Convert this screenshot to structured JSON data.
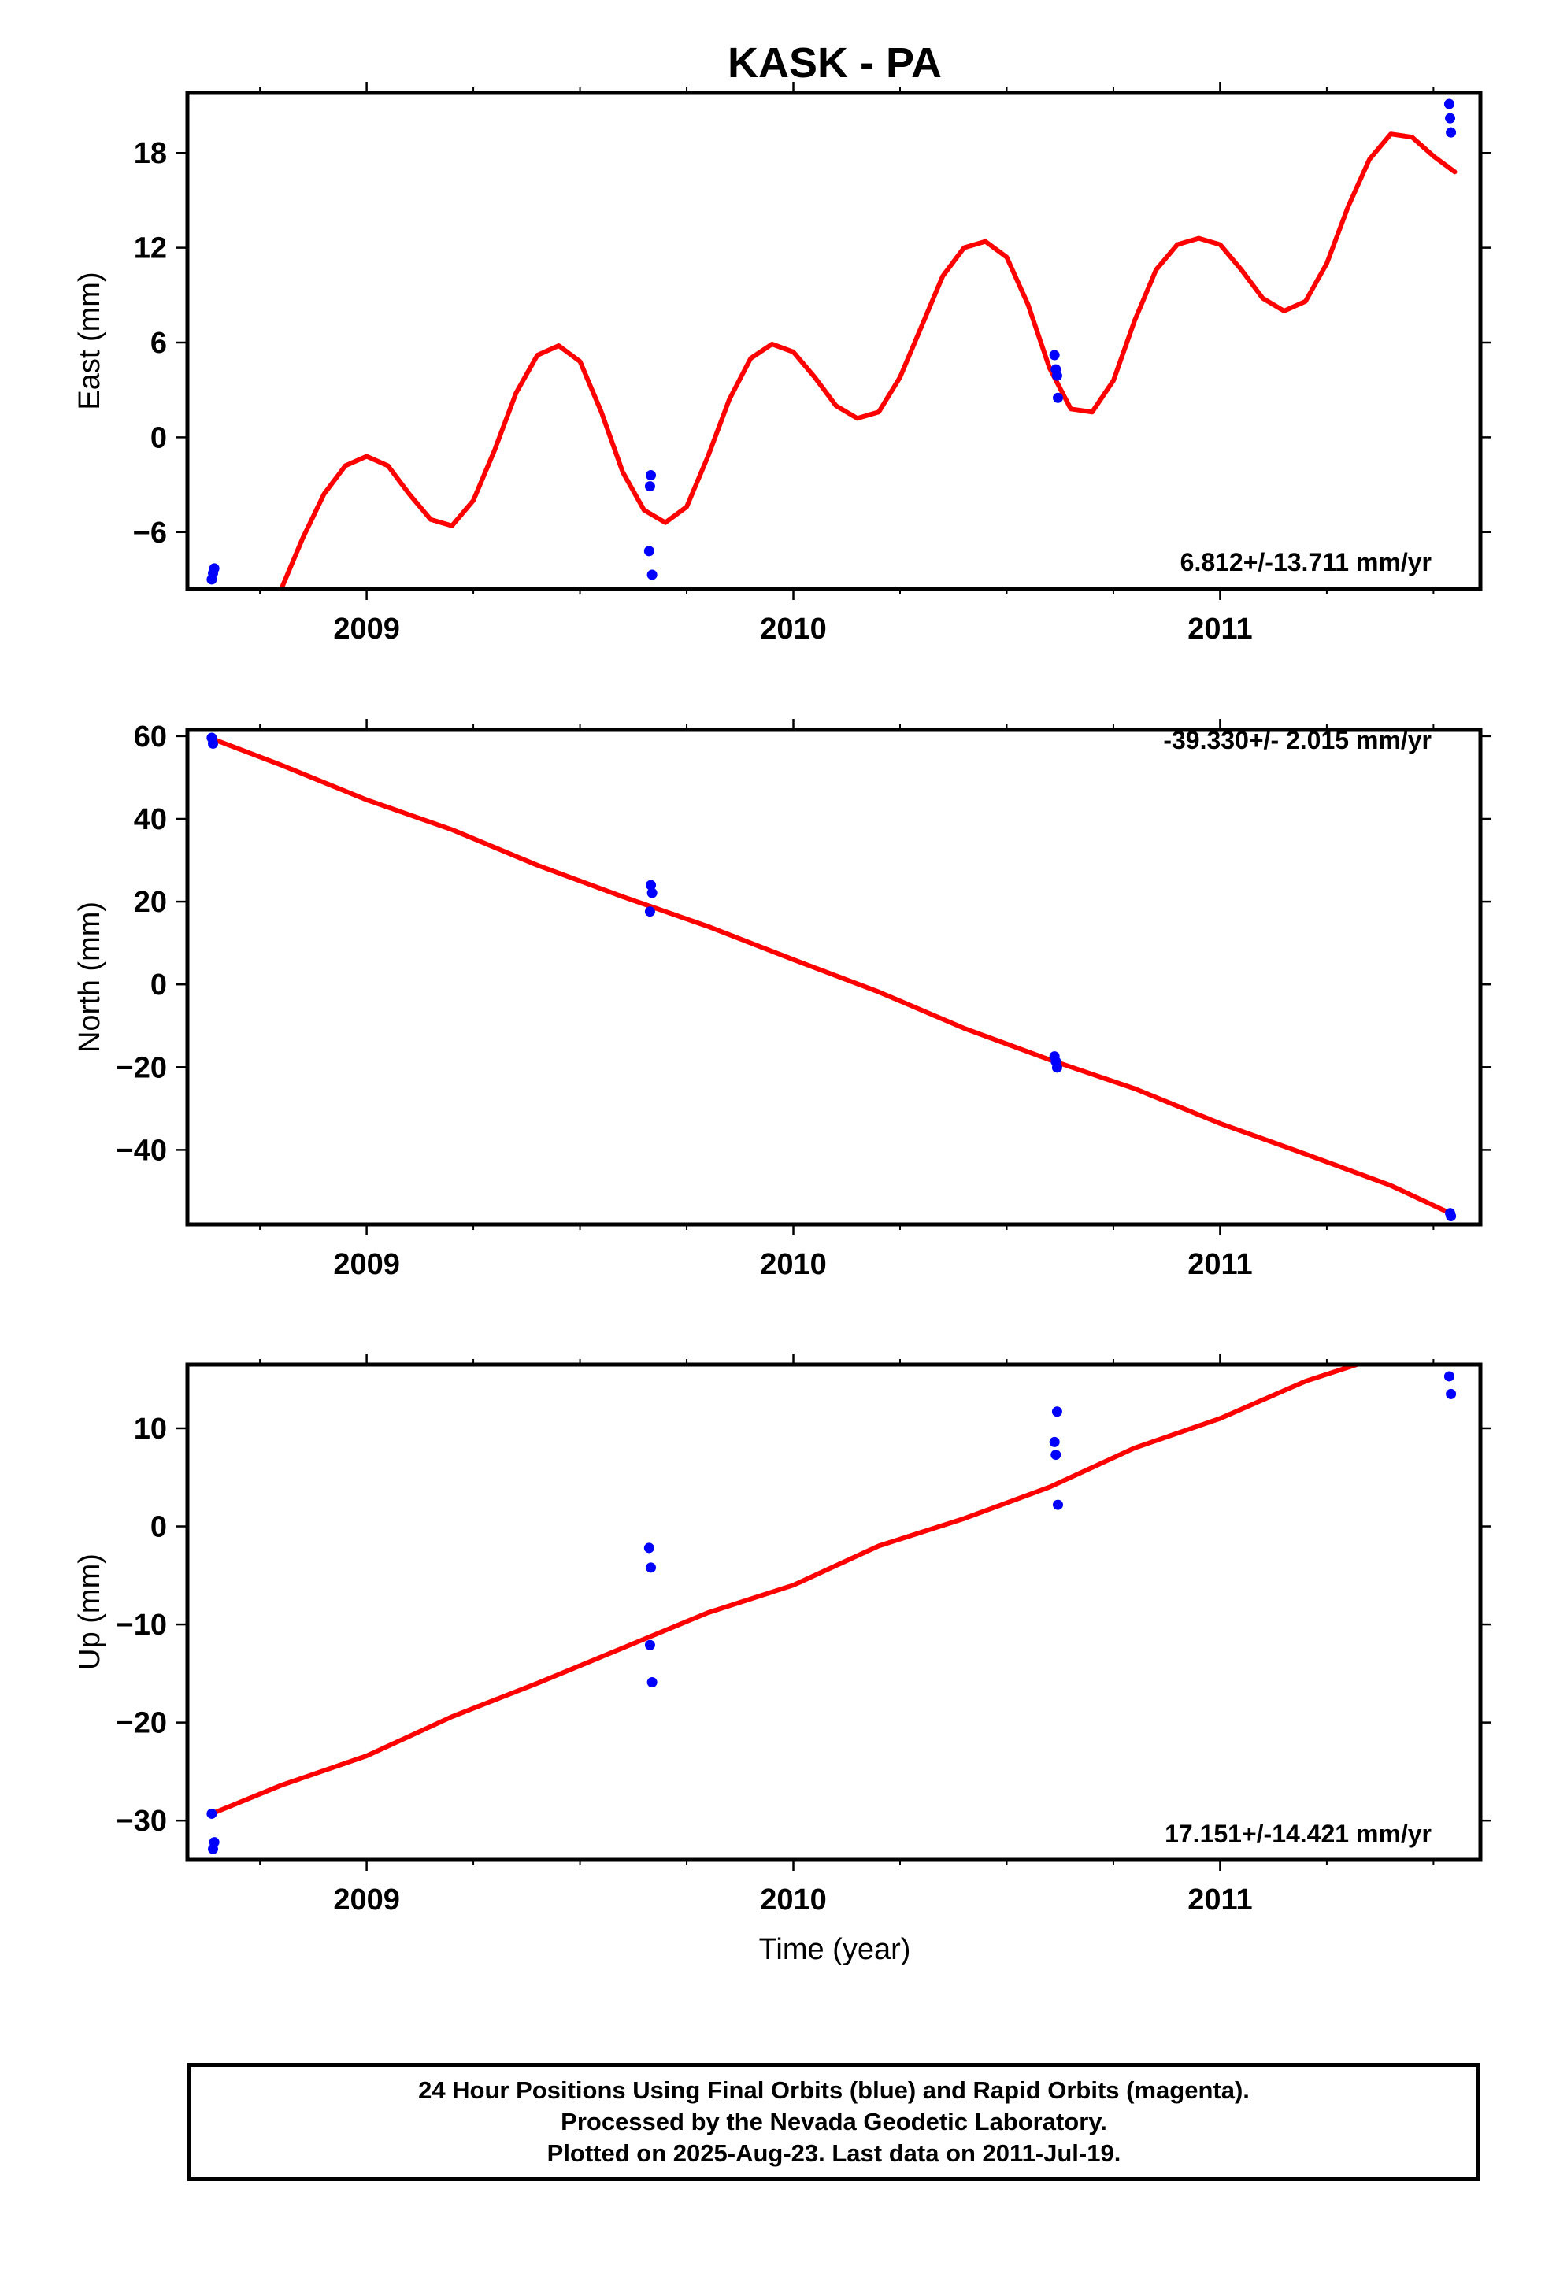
{
  "title": "KASK - PA",
  "xlabel": "Time (year)",
  "colors": {
    "fit": "#ff0000",
    "final_points": "#0000ff",
    "frame": "#000000"
  },
  "chart_data": [
    {
      "type": "scatter",
      "ylabel": "East (mm)",
      "rate_label": "6.812+/-13.711 mm/yr",
      "xlim": [
        2008.58,
        2011.61
      ],
      "ylim": [
        -9.6,
        21.8
      ],
      "xticks": [
        2009,
        2010,
        2011
      ],
      "yticks": [
        -6,
        0,
        6,
        12,
        18
      ],
      "grid": false,
      "series": [
        {
          "role": "final",
          "x": [
            2008.637,
            2008.64,
            2008.643,
            2009.662,
            2009.666,
            2009.664,
            2009.669,
            2010.612,
            2010.615,
            2010.618,
            2010.62,
            2011.537,
            2011.539,
            2011.541
          ],
          "y": [
            -9.0,
            -8.6,
            -8.3,
            -7.2,
            -2.4,
            -3.1,
            -8.7,
            5.2,
            4.3,
            3.9,
            2.5,
            21.1,
            20.2,
            19.3
          ]
        },
        {
          "role": "fit",
          "x": [
            2008.8,
            2008.85,
            2008.9,
            2008.95,
            2009.0,
            2009.05,
            2009.1,
            2009.15,
            2009.2,
            2009.25,
            2009.3,
            2009.35,
            2009.4,
            2009.45,
            2009.5,
            2009.55,
            2009.6,
            2009.65,
            2009.7,
            2009.75,
            2009.8,
            2009.85,
            2009.9,
            2009.95,
            2010.0,
            2010.05,
            2010.1,
            2010.15,
            2010.2,
            2010.25,
            2010.3,
            2010.35,
            2010.4,
            2010.45,
            2010.5,
            2010.55,
            2010.6,
            2010.65,
            2010.7,
            2010.75,
            2010.8,
            2010.85,
            2010.9,
            2010.95,
            2011.0,
            2011.05,
            2011.1,
            2011.15,
            2011.2,
            2011.25,
            2011.3,
            2011.35,
            2011.4,
            2011.45,
            2011.5,
            2011.55
          ],
          "y": [
            -9.6,
            -6.4,
            -3.6,
            -1.8,
            -1.2,
            -1.8,
            -3.6,
            -5.2,
            -5.6,
            -4.0,
            -0.8,
            2.8,
            5.2,
            5.8,
            4.8,
            1.6,
            -2.2,
            -4.6,
            -5.4,
            -4.4,
            -1.2,
            2.4,
            5.0,
            5.9,
            5.4,
            3.8,
            2.0,
            1.2,
            1.6,
            3.8,
            7.0,
            10.2,
            12.0,
            12.4,
            11.4,
            8.4,
            4.4,
            1.8,
            1.6,
            3.6,
            7.4,
            10.6,
            12.2,
            12.6,
            12.2,
            10.6,
            8.8,
            8.0,
            8.6,
            11.0,
            14.6,
            17.6,
            19.2,
            19.0,
            17.8,
            16.8
          ]
        }
      ]
    },
    {
      "type": "scatter",
      "ylabel": "North (mm)",
      "rate_label": "-39.330+/- 2.015 mm/yr",
      "xlim": [
        2008.58,
        2011.61
      ],
      "ylim": [
        -58.0,
        61.5
      ],
      "xticks": [
        2009,
        2010,
        2011
      ],
      "yticks": [
        -40,
        -20,
        0,
        20,
        40,
        60
      ],
      "grid": false,
      "series": [
        {
          "role": "final",
          "x": [
            2008.637,
            2008.64,
            2009.666,
            2009.669,
            2009.664,
            2010.612,
            2010.615,
            2010.618,
            2011.539,
            2011.541
          ],
          "y": [
            59.6,
            58.2,
            24.0,
            22.1,
            17.6,
            -17.4,
            -18.6,
            -20.1,
            -55.3,
            -56.0
          ]
        },
        {
          "role": "fit",
          "x": [
            2008.637,
            2008.8,
            2009.0,
            2009.2,
            2009.4,
            2009.6,
            2009.8,
            2010.0,
            2010.2,
            2010.4,
            2010.6,
            2010.8,
            2011.0,
            2011.2,
            2011.4,
            2011.541
          ],
          "y": [
            59.4,
            53.0,
            44.6,
            37.4,
            28.8,
            21.2,
            14.0,
            6.0,
            -1.8,
            -10.6,
            -18.2,
            -25.2,
            -33.6,
            -41.0,
            -48.6,
            -55.4
          ]
        }
      ]
    },
    {
      "type": "scatter",
      "ylabel": "Up (mm)",
      "rate_label": "17.151+/-14.421 mm/yr",
      "xlim": [
        2008.58,
        2011.61
      ],
      "ylim": [
        -34.0,
        16.5
      ],
      "xticks": [
        2009,
        2010,
        2011
      ],
      "yticks": [
        -30,
        -20,
        -10,
        0,
        10
      ],
      "grid": false,
      "series": [
        {
          "role": "final",
          "x": [
            2008.637,
            2008.64,
            2008.643,
            2009.662,
            2009.666,
            2009.664,
            2009.669,
            2010.612,
            2010.615,
            2010.618,
            2010.62,
            2011.537,
            2011.541
          ],
          "y": [
            -29.3,
            -32.9,
            -32.2,
            -2.2,
            -4.2,
            -12.1,
            -15.9,
            8.6,
            7.3,
            11.7,
            2.2,
            15.3,
            13.5
          ]
        },
        {
          "role": "fit",
          "x": [
            2008.637,
            2008.8,
            2009.0,
            2009.2,
            2009.4,
            2009.6,
            2009.8,
            2010.0,
            2010.2,
            2010.4,
            2010.6,
            2010.8,
            2011.0,
            2011.2,
            2011.32
          ],
          "y": [
            -29.3,
            -26.4,
            -23.4,
            -19.4,
            -16.0,
            -12.4,
            -8.8,
            -6.0,
            -2.0,
            0.8,
            4.0,
            8.0,
            11.0,
            14.8,
            16.5
          ]
        }
      ]
    }
  ],
  "footer": {
    "line1": "24 Hour Positions Using Final Orbits (blue) and Rapid Orbits (magenta).",
    "line2": "Processed by the Nevada Geodetic Laboratory.",
    "line3": "Plotted on 2025-Aug-23. Last data on 2011-Jul-19."
  }
}
